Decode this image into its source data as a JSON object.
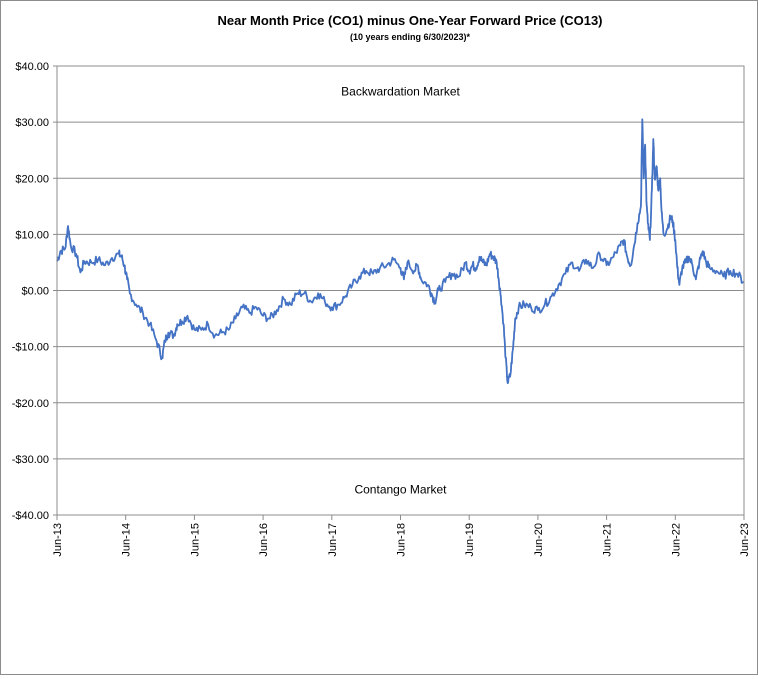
{
  "chart_data": {
    "type": "line",
    "title": "Near Month Price (CO1) minus One-Year Forward Price (CO13)",
    "subtitle": "(10 years ending  6/30/2023)*",
    "xlabel": "",
    "ylabel": "",
    "ylim": [
      -40,
      40
    ],
    "yticks": [
      {
        "value": 40,
        "label": "$40.00"
      },
      {
        "value": 30,
        "label": "$30.00"
      },
      {
        "value": 20,
        "label": "$20.00"
      },
      {
        "value": 10,
        "label": "$10.00"
      },
      {
        "value": 0,
        "label": "$0.00"
      },
      {
        "value": -10,
        "label": "-$10.00"
      },
      {
        "value": -20,
        "label": "-$20.00"
      },
      {
        "value": -30,
        "label": "-$30.00"
      },
      {
        "value": -40,
        "label": "-$40.00"
      }
    ],
    "xlim": [
      2013.5,
      2023.5
    ],
    "xticks": [
      {
        "value": 2013.5,
        "label": "Jun-13"
      },
      {
        "value": 2014.5,
        "label": "Jun-14"
      },
      {
        "value": 2015.5,
        "label": "Jun-15"
      },
      {
        "value": 2016.5,
        "label": "Jun-16"
      },
      {
        "value": 2017.5,
        "label": "Jun-17"
      },
      {
        "value": 2018.5,
        "label": "Jun-18"
      },
      {
        "value": 2019.5,
        "label": "Jun-19"
      },
      {
        "value": 2020.5,
        "label": "Jun-20"
      },
      {
        "value": 2021.5,
        "label": "Jun-21"
      },
      {
        "value": 2022.5,
        "label": "Jun-22"
      },
      {
        "value": 2023.5,
        "label": "Jun-23"
      }
    ],
    "grid": {
      "horizontal": true,
      "vertical": false
    },
    "annotations": [
      {
        "text": "Backwardation Market",
        "x": 2018.5,
        "y": 35.5
      },
      {
        "text": "Contango Market",
        "x": 2018.5,
        "y": -35.5
      }
    ],
    "series": [
      {
        "name": "",
        "color": "#4472c4",
        "points": [
          [
            2013.5,
            5.2
          ],
          [
            2013.55,
            7.0
          ],
          [
            2013.62,
            7.5
          ],
          [
            2013.66,
            11.5
          ],
          [
            2013.7,
            8.0
          ],
          [
            2013.78,
            6.5
          ],
          [
            2013.84,
            3.2
          ],
          [
            2013.9,
            5.2
          ],
          [
            2014.0,
            5.0
          ],
          [
            2014.1,
            5.5
          ],
          [
            2014.2,
            4.5
          ],
          [
            2014.3,
            5.8
          ],
          [
            2014.4,
            6.5
          ],
          [
            2014.44,
            6.0
          ],
          [
            2014.48,
            4.5
          ],
          [
            2014.52,
            2.0
          ],
          [
            2014.56,
            -0.5
          ],
          [
            2014.65,
            -2.5
          ],
          [
            2014.75,
            -4.0
          ],
          [
            2014.85,
            -6.0
          ],
          [
            2014.95,
            -9.0
          ],
          [
            2015.03,
            -12.0
          ],
          [
            2015.07,
            -9.0
          ],
          [
            2015.12,
            -7.5
          ],
          [
            2015.2,
            -8.0
          ],
          [
            2015.25,
            -6.0
          ],
          [
            2015.32,
            -5.5
          ],
          [
            2015.4,
            -4.5
          ],
          [
            2015.5,
            -7.0
          ],
          [
            2015.6,
            -7.0
          ],
          [
            2015.7,
            -6.0
          ],
          [
            2015.8,
            -8.0
          ],
          [
            2015.9,
            -7.5
          ],
          [
            2016.0,
            -7.0
          ],
          [
            2016.1,
            -5.0
          ],
          [
            2016.2,
            -3.0
          ],
          [
            2016.3,
            -4.0
          ],
          [
            2016.4,
            -3.0
          ],
          [
            2016.5,
            -4.5
          ],
          [
            2016.6,
            -5.0
          ],
          [
            2016.7,
            -3.5
          ],
          [
            2016.8,
            -1.5
          ],
          [
            2016.9,
            -2.5
          ],
          [
            2017.0,
            -0.5
          ],
          [
            2017.1,
            -0.5
          ],
          [
            2017.2,
            -2.0
          ],
          [
            2017.3,
            -0.5
          ],
          [
            2017.4,
            -2.0
          ],
          [
            2017.5,
            -3.0
          ],
          [
            2017.6,
            -2.5
          ],
          [
            2017.7,
            -1.0
          ],
          [
            2017.8,
            1.0
          ],
          [
            2017.9,
            2.5
          ],
          [
            2018.0,
            3.5
          ],
          [
            2018.1,
            3.0
          ],
          [
            2018.2,
            4.0
          ],
          [
            2018.3,
            4.5
          ],
          [
            2018.4,
            5.5
          ],
          [
            2018.5,
            4.0
          ],
          [
            2018.55,
            2.0
          ],
          [
            2018.6,
            5.0
          ],
          [
            2018.7,
            3.5
          ],
          [
            2018.75,
            4.5
          ],
          [
            2018.8,
            2.0
          ],
          [
            2018.9,
            1.0
          ],
          [
            2018.95,
            -0.5
          ],
          [
            2019.0,
            -2.0
          ],
          [
            2019.05,
            0.0
          ],
          [
            2019.15,
            1.5
          ],
          [
            2019.25,
            3.0
          ],
          [
            2019.35,
            2.5
          ],
          [
            2019.45,
            5.0
          ],
          [
            2019.5,
            3.5
          ],
          [
            2019.55,
            4.5
          ],
          [
            2019.6,
            4.0
          ],
          [
            2019.65,
            6.0
          ],
          [
            2019.7,
            5.0
          ],
          [
            2019.75,
            4.5
          ],
          [
            2019.8,
            6.5
          ],
          [
            2019.85,
            6.0
          ],
          [
            2019.9,
            5.0
          ],
          [
            2019.93,
            2.0
          ],
          [
            2019.96,
            -1.0
          ],
          [
            2020.0,
            -6.0
          ],
          [
            2020.03,
            -12.0
          ],
          [
            2020.06,
            -16.5
          ],
          [
            2020.1,
            -15.0
          ],
          [
            2020.14,
            -10.0
          ],
          [
            2020.17,
            -5.0
          ],
          [
            2020.22,
            -3.0
          ],
          [
            2020.3,
            -2.5
          ],
          [
            2020.4,
            -3.0
          ],
          [
            2020.5,
            -3.5
          ],
          [
            2020.6,
            -2.5
          ],
          [
            2020.7,
            -1.0
          ],
          [
            2020.8,
            1.0
          ],
          [
            2020.9,
            3.0
          ],
          [
            2021.0,
            5.0
          ],
          [
            2021.1,
            3.5
          ],
          [
            2021.2,
            5.5
          ],
          [
            2021.3,
            4.0
          ],
          [
            2021.4,
            6.5
          ],
          [
            2021.5,
            4.5
          ],
          [
            2021.6,
            6.0
          ],
          [
            2021.7,
            8.0
          ],
          [
            2021.75,
            9.0
          ],
          [
            2021.8,
            6.0
          ],
          [
            2021.85,
            4.5
          ],
          [
            2021.9,
            8.0
          ],
          [
            2021.95,
            12.0
          ],
          [
            2022.0,
            15.0
          ],
          [
            2022.02,
            30.5
          ],
          [
            2022.04,
            20.0
          ],
          [
            2022.06,
            26.0
          ],
          [
            2022.08,
            16.0
          ],
          [
            2022.1,
            12.0
          ],
          [
            2022.13,
            9.0
          ],
          [
            2022.16,
            18.0
          ],
          [
            2022.18,
            27.0
          ],
          [
            2022.2,
            20.0
          ],
          [
            2022.23,
            22.0
          ],
          [
            2022.25,
            18.0
          ],
          [
            2022.28,
            20.0
          ],
          [
            2022.3,
            14.0
          ],
          [
            2022.33,
            10.0
          ],
          [
            2022.38,
            11.0
          ],
          [
            2022.43,
            13.0
          ],
          [
            2022.46,
            12.5
          ],
          [
            2022.5,
            9.0
          ],
          [
            2022.53,
            4.0
          ],
          [
            2022.56,
            1.0
          ],
          [
            2022.6,
            4.0
          ],
          [
            2022.65,
            5.0
          ],
          [
            2022.7,
            6.0
          ],
          [
            2022.75,
            4.5
          ],
          [
            2022.8,
            2.0
          ],
          [
            2022.85,
            5.0
          ],
          [
            2022.9,
            7.0
          ],
          [
            2022.95,
            5.0
          ],
          [
            2023.0,
            4.0
          ],
          [
            2023.1,
            3.5
          ],
          [
            2023.2,
            2.5
          ],
          [
            2023.3,
            3.5
          ],
          [
            2023.4,
            3.0
          ],
          [
            2023.5,
            1.5
          ]
        ]
      }
    ]
  }
}
